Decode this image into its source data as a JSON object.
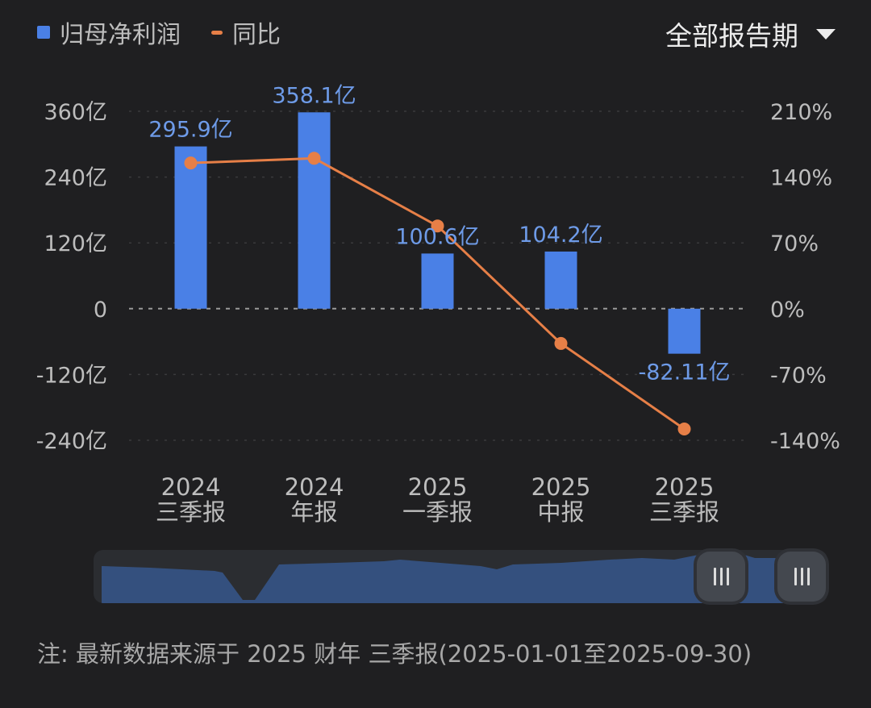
{
  "legend": {
    "bar_label": "归母净利润",
    "line_label": "同比"
  },
  "period_selector": {
    "label": "全部报告期"
  },
  "chart_data": {
    "type": "bar",
    "categories": [
      [
        "2024",
        "三季报"
      ],
      [
        "2024",
        "年报"
      ],
      [
        "2025",
        "一季报"
      ],
      [
        "2025",
        "中报"
      ],
      [
        "2025",
        "三季报"
      ]
    ],
    "series": [
      {
        "name": "归母净利润",
        "type": "bar",
        "axis": "left",
        "values": [
          295.9,
          358.1,
          100.6,
          104.2,
          -82.11
        ],
        "labels": [
          "295.9亿",
          "358.1亿",
          "100.6亿",
          "104.2亿",
          "-82.11亿"
        ],
        "color": "#4a80e6"
      },
      {
        "name": "同比",
        "type": "line",
        "axis": "right",
        "values": [
          155,
          160,
          88,
          -37,
          -128
        ],
        "color": "#e67f47"
      }
    ],
    "y_left": {
      "ticks": [
        360,
        240,
        120,
        0,
        -120,
        -240
      ],
      "tick_labels": [
        "360亿",
        "240亿",
        "120亿",
        "0",
        "-120亿",
        "-240亿"
      ],
      "ylim": [
        -240,
        360
      ]
    },
    "y_right": {
      "ticks": [
        210,
        140,
        70,
        0,
        -70,
        -140
      ],
      "tick_labels": [
        "210%",
        "140%",
        "70%",
        "0%",
        "-70%",
        "-140%"
      ],
      "ylim": [
        -140,
        210
      ]
    },
    "grid": true,
    "label_color": "#6e9be8"
  },
  "footnote": "注: 最新数据来源于 2025 财年 三季报(2025-01-01至2025-09-30)"
}
